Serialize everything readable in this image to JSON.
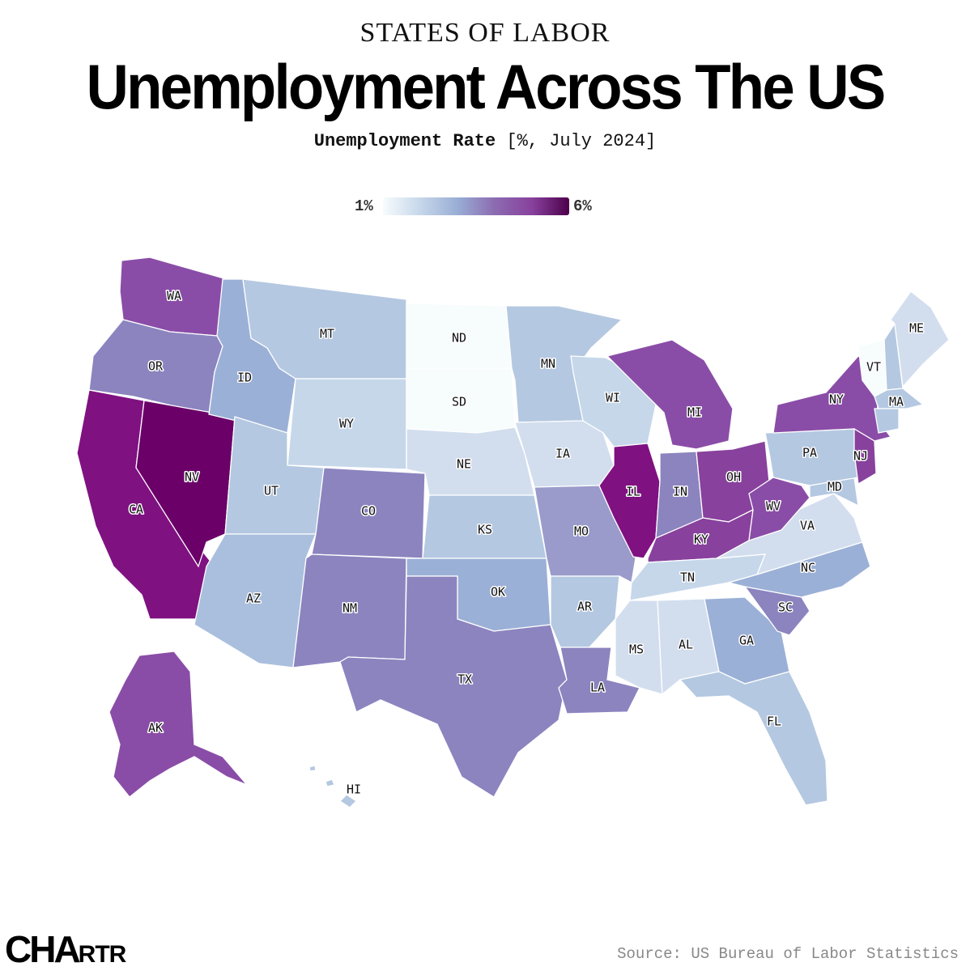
{
  "header": {
    "kicker": "STATES OF LABOR",
    "title": "Unemployment Across The US",
    "subtitle_bold": "Unemployment Rate",
    "subtitle_rest": " [%, July 2024]"
  },
  "legend": {
    "min_label": "1%",
    "max_label": "6%",
    "colors": [
      "#f7fcfd",
      "#c6d7ea",
      "#99aed5",
      "#8c6bb1",
      "#88419d",
      "#4d004b"
    ]
  },
  "colors": {
    "darkest": "#6a0068",
    "very_dark": "#7f1181",
    "purple": "#8a4da7",
    "mid_purple": "#8c84bf",
    "blue_purple": "#9bb0d6",
    "light_blue": "#b4c8e1",
    "lighter": "#d2deee",
    "pale": "#f7fcfd"
  },
  "states": [
    {
      "abbr": "WA",
      "color": "#8a4da7"
    },
    {
      "abbr": "OR",
      "color": "#8c84bf"
    },
    {
      "abbr": "CA",
      "color": "#7f1181"
    },
    {
      "abbr": "NV",
      "color": "#6a0068"
    },
    {
      "abbr": "ID",
      "color": "#9bb0d6"
    },
    {
      "abbr": "MT",
      "color": "#b4c8e1"
    },
    {
      "abbr": "WY",
      "color": "#c6d7ea"
    },
    {
      "abbr": "UT",
      "color": "#b4c8e1"
    },
    {
      "abbr": "AZ",
      "color": "#a9bfdd"
    },
    {
      "abbr": "CO",
      "color": "#8c84bf"
    },
    {
      "abbr": "NM",
      "color": "#8c84bf"
    },
    {
      "abbr": "ND",
      "color": "#f7fcfd"
    },
    {
      "abbr": "SD",
      "color": "#f7fcfd"
    },
    {
      "abbr": "NE",
      "color": "#d2deee"
    },
    {
      "abbr": "KS",
      "color": "#b4c8e1"
    },
    {
      "abbr": "OK",
      "color": "#9bb0d6"
    },
    {
      "abbr": "TX",
      "color": "#8c84bf"
    },
    {
      "abbr": "MN",
      "color": "#b4c8e1"
    },
    {
      "abbr": "IA",
      "color": "#d2deee"
    },
    {
      "abbr": "MO",
      "color": "#9a9bcb"
    },
    {
      "abbr": "AR",
      "color": "#b4c8e1"
    },
    {
      "abbr": "LA",
      "color": "#8c84bf"
    },
    {
      "abbr": "WI",
      "color": "#c6d7ea"
    },
    {
      "abbr": "IL",
      "color": "#7f1181"
    },
    {
      "abbr": "MI",
      "color": "#8a4da7"
    },
    {
      "abbr": "IN",
      "color": "#8c84bf"
    },
    {
      "abbr": "OH",
      "color": "#88419d"
    },
    {
      "abbr": "KY",
      "color": "#88419d"
    },
    {
      "abbr": "TN",
      "color": "#c6d7ea"
    },
    {
      "abbr": "MS",
      "color": "#d2deee"
    },
    {
      "abbr": "AL",
      "color": "#d2deee"
    },
    {
      "abbr": "GA",
      "color": "#9bb0d6"
    },
    {
      "abbr": "FL",
      "color": "#b4c8e1"
    },
    {
      "abbr": "SC",
      "color": "#8c84bf"
    },
    {
      "abbr": "NC",
      "color": "#9bb0d6"
    },
    {
      "abbr": "VA",
      "color": "#d2deee"
    },
    {
      "abbr": "WV",
      "color": "#8a4da7"
    },
    {
      "abbr": "MD",
      "color": "#b4c8e1"
    },
    {
      "abbr": "PA",
      "color": "#b4c8e1"
    },
    {
      "abbr": "NY",
      "color": "#8a4da7"
    },
    {
      "abbr": "NJ",
      "color": "#88419d"
    },
    {
      "abbr": "VT",
      "color": "#f7fcfd"
    },
    {
      "abbr": "ME",
      "color": "#d2deee"
    },
    {
      "abbr": "MA",
      "color": "#b4c8e1"
    },
    {
      "abbr": "AK",
      "color": "#8a4da7"
    },
    {
      "abbr": "HI",
      "color": "#b4c8e1"
    }
  ],
  "footer": {
    "logo_a": "CHA",
    "logo_b": "RTR",
    "source": "Source: US Bureau of Labor Statistics"
  }
}
